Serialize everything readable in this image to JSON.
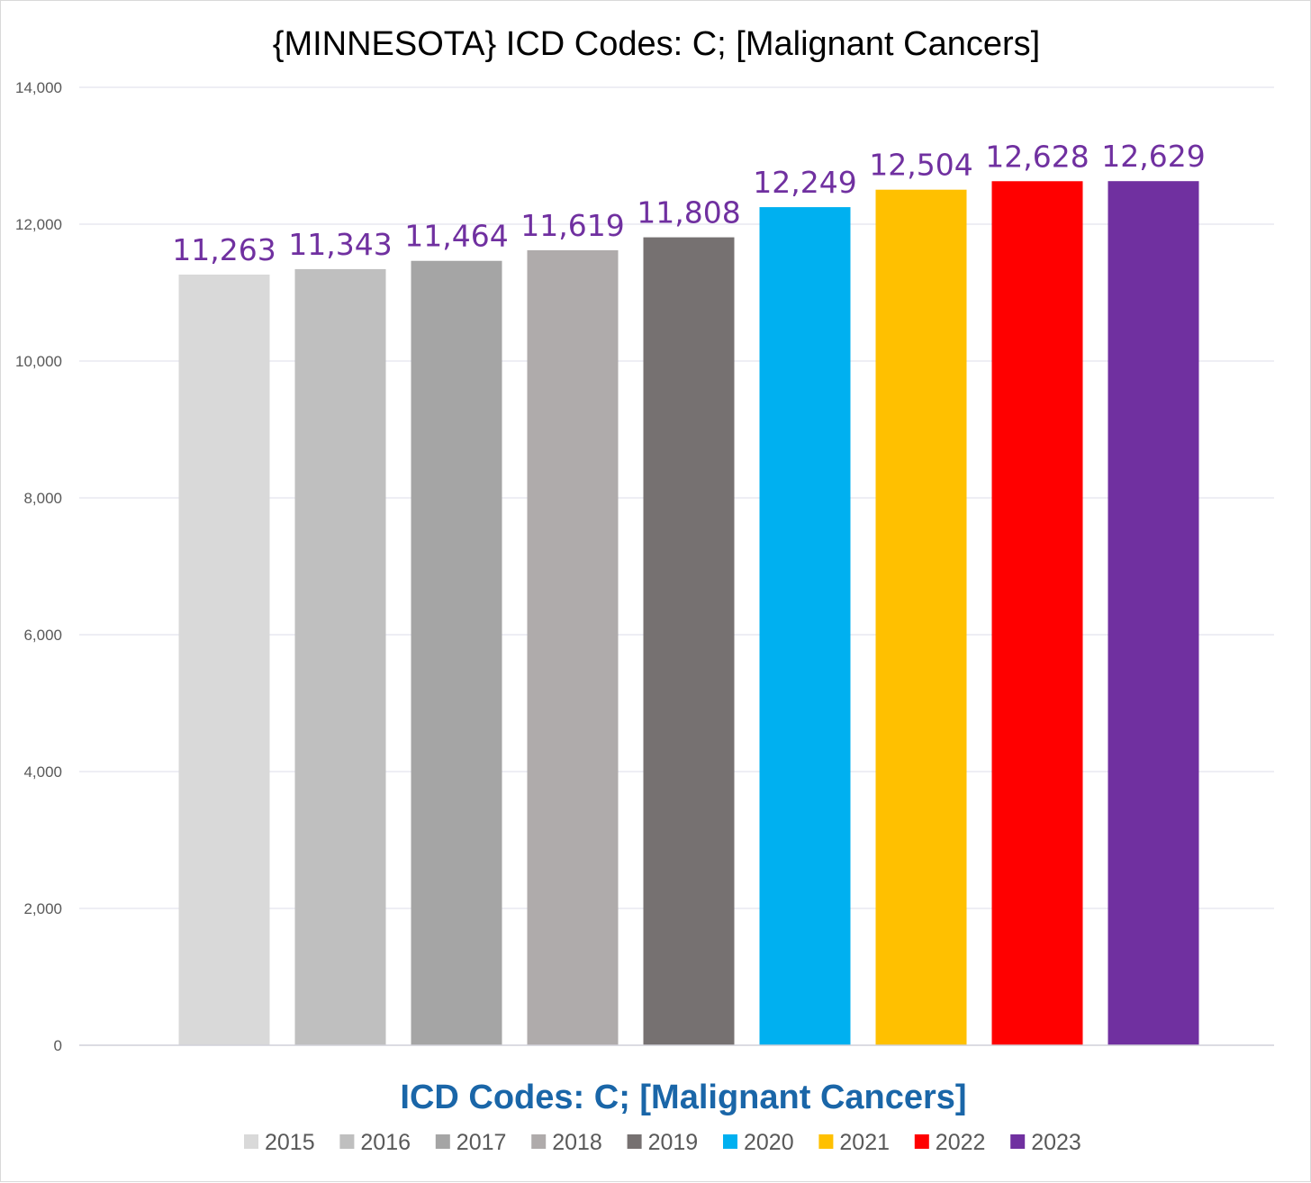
{
  "chart_data": {
    "type": "bar",
    "title": "{MINNESOTA}  ICD Codes: C;  [Malignant Cancers]",
    "xlabel": "ICD Codes: C;  [Malignant Cancers]",
    "ylabel": "",
    "ylim": [
      0,
      14000
    ],
    "yticks": [
      0,
      2000,
      4000,
      6000,
      8000,
      10000,
      12000,
      14000
    ],
    "ytick_labels": [
      "0",
      "2,000",
      "4,000",
      "6,000",
      "8,000",
      "10,000",
      "12,000",
      "14,000"
    ],
    "grid": true,
    "legend_position": "bottom",
    "series": [
      {
        "name": "2015",
        "value": 11263,
        "label": "11,263",
        "color": "#d9d9d9"
      },
      {
        "name": "2016",
        "value": 11343,
        "label": "11,343",
        "color": "#bfbfbf"
      },
      {
        "name": "2017",
        "value": 11464,
        "label": "11,464",
        "color": "#a5a5a5"
      },
      {
        "name": "2018",
        "value": 11619,
        "label": "11,619",
        "color": "#afabab"
      },
      {
        "name": "2019",
        "value": 11808,
        "label": "11,808",
        "color": "#767171"
      },
      {
        "name": "2020",
        "value": 12249,
        "label": "12,249",
        "color": "#00b0f0"
      },
      {
        "name": "2021",
        "value": 12504,
        "label": "12,504",
        "color": "#ffc000"
      },
      {
        "name": "2022",
        "value": 12628,
        "label": "12,628",
        "color": "#ff0000"
      },
      {
        "name": "2023",
        "value": 12629,
        "label": "12,629",
        "color": "#7030a0"
      }
    ],
    "data_label_color": "#7030a0",
    "xlabel_color": "#1a66a8"
  }
}
